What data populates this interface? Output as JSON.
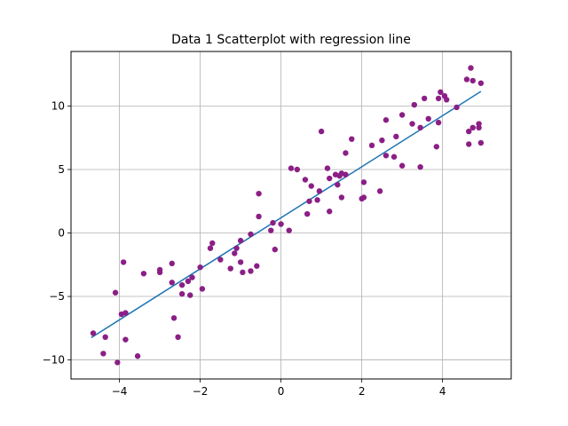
{
  "chart_data": {
    "type": "scatter",
    "title": "Data 1 Scatterplot with regression line",
    "xlabel": "",
    "ylabel": "",
    "xlim": [
      -5.2,
      5.7
    ],
    "ylim": [
      -11.5,
      14.3
    ],
    "grid": true,
    "x_ticks": [
      -4,
      -2,
      0,
      2,
      4
    ],
    "y_ticks": [
      -10,
      -5,
      0,
      5,
      10
    ],
    "x_tick_labels": [
      "−4",
      "−2",
      "0",
      "2",
      "4"
    ],
    "y_tick_labels": [
      "−10",
      "−5",
      "0",
      "5",
      "10"
    ],
    "colors": {
      "points": "#8b1f86",
      "line": "#1f77b4",
      "grid": "#b0b0b0"
    },
    "series": [
      {
        "kind": "points",
        "points": [
          [
            -4.65,
            -7.9
          ],
          [
            -4.35,
            -8.2
          ],
          [
            -4.4,
            -9.5
          ],
          [
            -4.1,
            -4.7
          ],
          [
            -4.05,
            -10.2
          ],
          [
            -3.95,
            -6.4
          ],
          [
            -3.9,
            -2.3
          ],
          [
            -3.85,
            -6.3
          ],
          [
            -3.85,
            -8.4
          ],
          [
            -3.55,
            -9.7
          ],
          [
            -3.4,
            -3.2
          ],
          [
            -3.0,
            -3.1
          ],
          [
            -3.0,
            -2.9
          ],
          [
            -2.7,
            -2.4
          ],
          [
            -2.7,
            -3.9
          ],
          [
            -2.65,
            -6.7
          ],
          [
            -2.55,
            -8.2
          ],
          [
            -2.45,
            -4.1
          ],
          [
            -2.45,
            -4.8
          ],
          [
            -2.3,
            -3.8
          ],
          [
            -2.25,
            -4.9
          ],
          [
            -2.2,
            -3.5
          ],
          [
            -2.0,
            -2.7
          ],
          [
            -1.95,
            -4.4
          ],
          [
            -1.75,
            -1.2
          ],
          [
            -1.7,
            -0.8
          ],
          [
            -1.5,
            -2.1
          ],
          [
            -1.25,
            -2.8
          ],
          [
            -1.15,
            -1.6
          ],
          [
            -1.1,
            -1.2
          ],
          [
            -1.0,
            -0.6
          ],
          [
            -1.0,
            -2.3
          ],
          [
            -0.95,
            -3.1
          ],
          [
            -0.75,
            -0.1
          ],
          [
            -0.75,
            -3.0
          ],
          [
            -0.6,
            -2.6
          ],
          [
            -0.55,
            1.3
          ],
          [
            -0.55,
            3.1
          ],
          [
            -0.25,
            0.2
          ],
          [
            -0.2,
            0.8
          ],
          [
            -0.15,
            -1.3
          ],
          [
            0.0,
            0.7
          ],
          [
            0.2,
            0.2
          ],
          [
            0.25,
            5.1
          ],
          [
            0.4,
            5.0
          ],
          [
            0.6,
            4.2
          ],
          [
            0.65,
            1.5
          ],
          [
            0.7,
            2.5
          ],
          [
            0.75,
            3.7
          ],
          [
            0.9,
            2.6
          ],
          [
            0.95,
            3.3
          ],
          [
            1.0,
            8.0
          ],
          [
            1.15,
            5.1
          ],
          [
            1.2,
            1.7
          ],
          [
            1.2,
            4.3
          ],
          [
            1.35,
            4.6
          ],
          [
            1.4,
            3.8
          ],
          [
            1.45,
            4.5
          ],
          [
            1.5,
            2.8
          ],
          [
            1.5,
            4.7
          ],
          [
            1.6,
            4.6
          ],
          [
            1.6,
            6.3
          ],
          [
            1.75,
            7.4
          ],
          [
            2.0,
            2.7
          ],
          [
            2.05,
            2.8
          ],
          [
            2.05,
            4.0
          ],
          [
            2.25,
            6.9
          ],
          [
            2.45,
            3.3
          ],
          [
            2.5,
            7.3
          ],
          [
            2.6,
            6.1
          ],
          [
            2.6,
            8.9
          ],
          [
            2.8,
            6.0
          ],
          [
            2.85,
            7.6
          ],
          [
            3.0,
            5.3
          ],
          [
            3.0,
            9.3
          ],
          [
            3.25,
            8.6
          ],
          [
            3.3,
            10.1
          ],
          [
            3.45,
            5.2
          ],
          [
            3.45,
            8.3
          ],
          [
            3.55,
            10.6
          ],
          [
            3.65,
            9.0
          ],
          [
            3.85,
            6.8
          ],
          [
            3.9,
            8.7
          ],
          [
            3.9,
            10.6
          ],
          [
            3.95,
            11.1
          ],
          [
            4.05,
            10.8
          ],
          [
            4.1,
            10.5
          ],
          [
            4.35,
            9.9
          ],
          [
            4.6,
            12.1
          ],
          [
            4.65,
            7.0
          ],
          [
            4.65,
            8.0
          ],
          [
            4.7,
            13.0
          ],
          [
            4.75,
            12.0
          ],
          [
            4.75,
            8.3
          ],
          [
            4.9,
            8.3
          ],
          [
            4.9,
            8.6
          ],
          [
            4.95,
            7.1
          ],
          [
            4.95,
            11.8
          ]
        ]
      },
      {
        "kind": "regression-line",
        "x": [
          -4.7,
          4.95
        ],
        "y": [
          -8.25,
          11.15
        ]
      }
    ]
  }
}
